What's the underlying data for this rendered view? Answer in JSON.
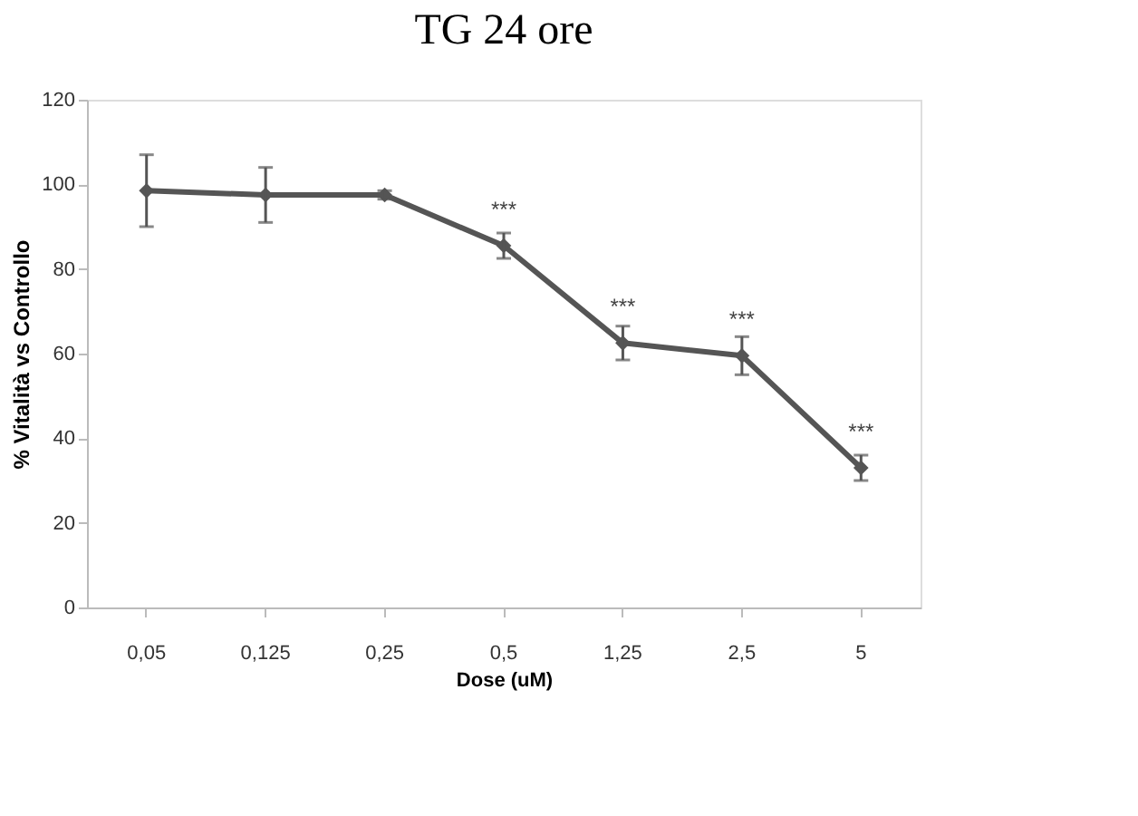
{
  "chart_data": {
    "type": "line",
    "title": "TG 24 ore",
    "xlabel": "Dose (uM)",
    "ylabel": "% Vitalità vs Controllo",
    "categories": [
      "0,05",
      "0,125",
      "0,25",
      "0,5",
      "1,25",
      "2,5",
      "5"
    ],
    "series": [
      {
        "color": "#555555",
        "values": [
          98.5,
          97.5,
          97.5,
          85.5,
          62.5,
          59.5,
          33
        ],
        "errors": [
          8.5,
          6.5,
          1,
          3,
          4,
          4.5,
          3
        ]
      }
    ],
    "ylim": [
      0,
      120
    ],
    "yticks": [
      0,
      20,
      40,
      60,
      80,
      100,
      120
    ],
    "grid": false,
    "marker": "diamond",
    "line_style": "solid",
    "annotations": [
      {
        "text": "***",
        "x": "0,5",
        "y": 85.5
      },
      {
        "text": "***",
        "x": "1,25",
        "y": 62.5
      },
      {
        "text": "***",
        "x": "2,5",
        "y": 59.5
      },
      {
        "text": "***",
        "x": "5",
        "y": 33
      }
    ]
  }
}
